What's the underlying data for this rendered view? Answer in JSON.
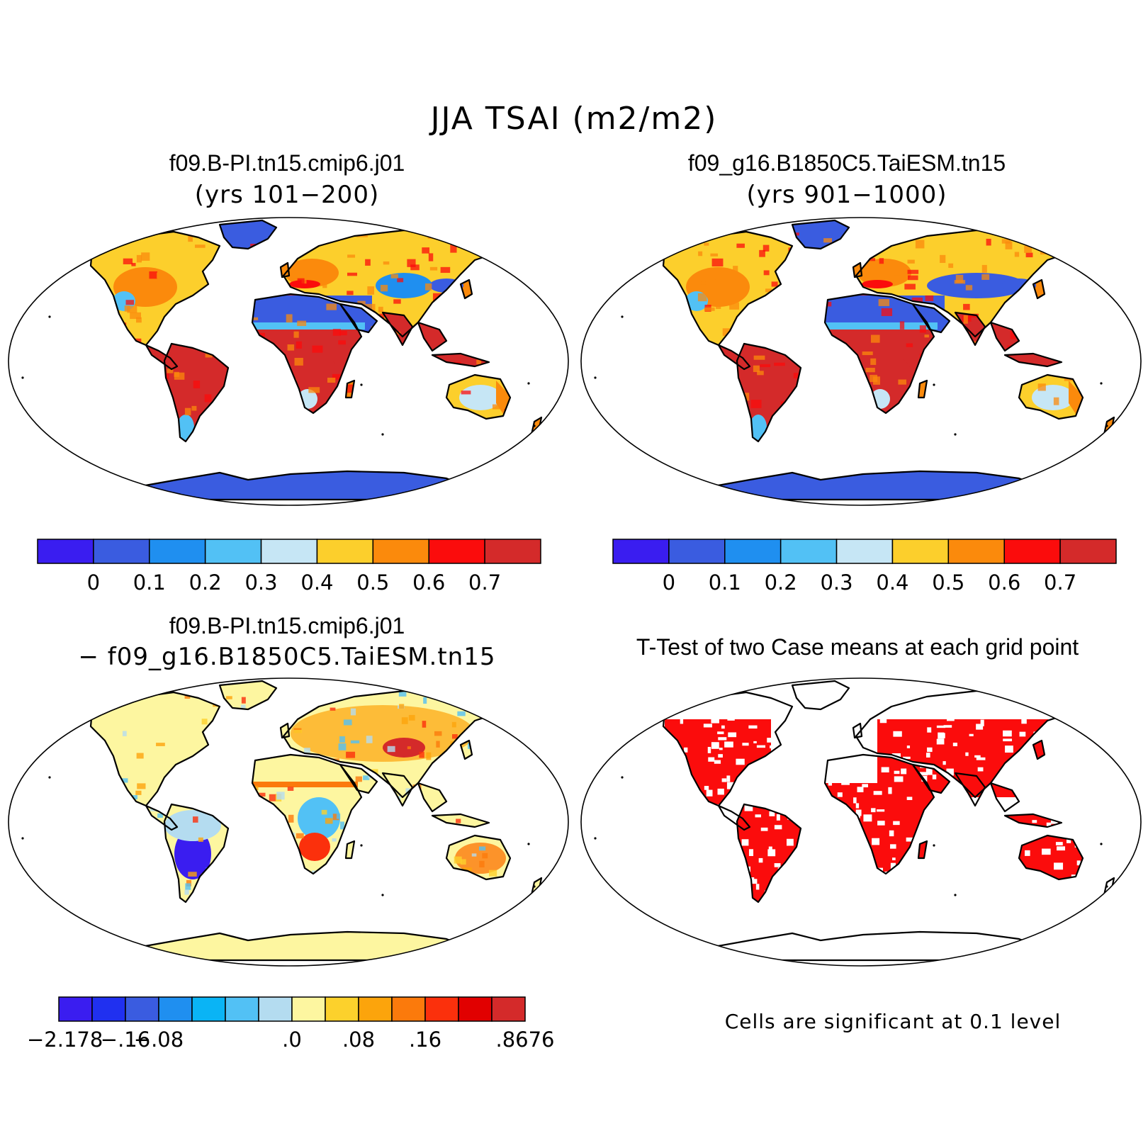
{
  "title": "JJA TSAI (m2/m2)",
  "panels": [
    {
      "id": "case1",
      "title": "f09.B-PI.tn15.cmip6.j01",
      "subtitle": "(yrs 101−200)"
    },
    {
      "id": "case2",
      "title": "f09_g16.B1850C5.TaiESM.tn15",
      "subtitle": "(yrs 901−1000)"
    },
    {
      "id": "diff",
      "title": "f09.B-PI.tn15.cmip6.j01",
      "subtitle": "− f09_g16.B1850C5.TaiESM.tn15"
    },
    {
      "id": "ttest",
      "title": "T-Test of two Case means at each grid point",
      "subtitle": ""
    }
  ],
  "colorbars": {
    "main": {
      "colors": [
        "#3a1df0",
        "#3a5ce0",
        "#1f8ff0",
        "#52c1f5",
        "#c6e6f5",
        "#fccf2c",
        "#fb8a0c",
        "#fb0c0c",
        "#d42a2a"
      ],
      "labels": [
        "0",
        "0.1",
        "0.2",
        "0.3",
        "0.4",
        "0.5",
        "0.6",
        "0.7"
      ]
    },
    "diff": {
      "colors": [
        "#3a1df0",
        "#2030f0",
        "#3a5ce0",
        "#1f8ff0",
        "#0ab4f5",
        "#52c1f5",
        "#b4dcf0",
        "#fdf6a0",
        "#fcd12c",
        "#fca40c",
        "#fb7a0c",
        "#fb300c",
        "#e10000",
        "#d42a2a"
      ],
      "labels": [
        "−2.178",
        "−.16",
        "−.08",
        ".0",
        ".08",
        ".16",
        ".8676"
      ]
    }
  },
  "significance_note": "Cells are significant at 0.1 level",
  "map_fill_colors": {
    "ocean": "#ffffff",
    "ice": "#3a5ce0",
    "desert": "#3a5ce0",
    "boreal": "#fccf2c",
    "temperate": "#fb8a0c",
    "tropical": "#d42a2a",
    "diff_base": "#fdf6a0",
    "signif": "#fb0c0c"
  }
}
